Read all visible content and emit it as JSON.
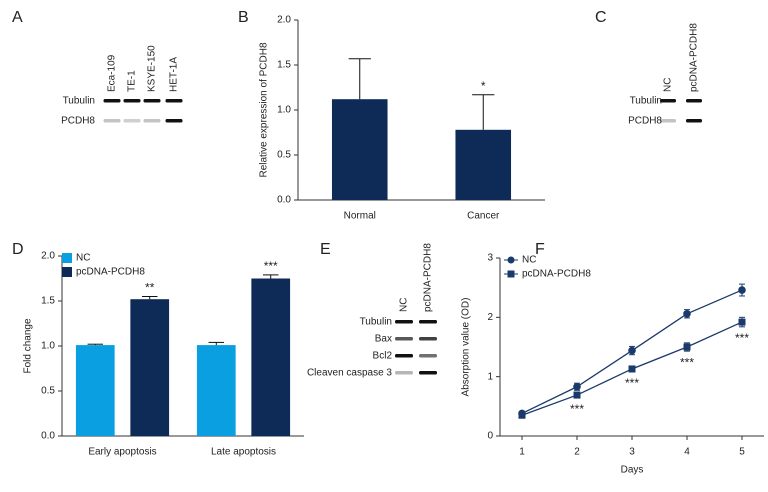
{
  "panel_labels": [
    "A",
    "B",
    "C",
    "D",
    "E",
    "F"
  ],
  "blots": [
    {
      "lanes": [
        "Eca-109",
        "TE-1",
        "KSYE-150",
        "HET-1A"
      ],
      "rows": [
        "Tubulin",
        "PCDH8"
      ]
    },
    {
      "lanes": [
        "NC",
        "pcDNA-PCDH8"
      ],
      "rows": [
        "Tubulin",
        "PCDH8"
      ]
    },
    {
      "lanes": [
        "NC",
        "pcDNA-PCDH8"
      ],
      "rows": [
        "Tubulin",
        "Bax",
        "Bcl2",
        "Cleaven caspase 3"
      ]
    }
  ],
  "chart_data": [
    {
      "type": "bar",
      "ylabel": "Relative expression of PCDH8",
      "categories": [
        "Normal",
        "Cancer"
      ],
      "values": [
        1.12,
        0.78
      ],
      "errors": [
        0.45,
        0.39
      ],
      "annotations": [
        null,
        "*"
      ],
      "color": "#0d2b56",
      "ylim": [
        0,
        2
      ],
      "yticks": [
        {
          "value": 0,
          "label": "0.0"
        },
        {
          "value": 0.5,
          "label": "0.5"
        },
        {
          "value": 1,
          "label": "1.0"
        },
        {
          "value": 1.5,
          "label": "1.5"
        },
        {
          "value": 2,
          "label": "2.0"
        }
      ]
    },
    {
      "type": "bar",
      "ylabel": "Fold change",
      "legend": "upper left",
      "categories": [
        "Early apoptosis",
        "Late apoptosis"
      ],
      "series": [
        {
          "name": "NC",
          "color": "#0a9fe0",
          "values": [
            1.01,
            1.01
          ],
          "errors": [
            0.01,
            0.03
          ],
          "annotations": [
            null,
            null
          ]
        },
        {
          "name": "pcDNA-PCDH8",
          "color": "#0d2b56",
          "values": [
            1.52,
            1.75
          ],
          "errors": [
            0.03,
            0.04
          ],
          "annotations": [
            "**",
            "***"
          ]
        }
      ],
      "ylim": [
        0,
        2
      ],
      "yticks": [
        {
          "value": 0,
          "label": "0.0"
        },
        {
          "value": 0.5,
          "label": "0.5"
        },
        {
          "value": 1,
          "label": "1.0"
        },
        {
          "value": 1.5,
          "label": "1.5"
        },
        {
          "value": 2,
          "label": "2.0"
        }
      ]
    },
    {
      "type": "line",
      "xlabel": "Days",
      "ylabel": "Absorption value (OD)",
      "legend": "upper left",
      "x": [
        1,
        2,
        3,
        4,
        5
      ],
      "series": [
        {
          "name": "NC",
          "color": "#1b3a6b",
          "marker": "circle",
          "values": [
            0.38,
            0.83,
            1.44,
            2.06,
            2.46
          ],
          "errors": [
            0.03,
            0.06,
            0.07,
            0.07,
            0.1
          ],
          "annotations": [
            null,
            null,
            null,
            null,
            null
          ]
        },
        {
          "name": "pcDNA-PCDH8",
          "color": "#1b3a6b",
          "marker": "square",
          "values": [
            0.35,
            0.69,
            1.13,
            1.5,
            1.92
          ],
          "errors": [
            0.03,
            0.05,
            0.05,
            0.07,
            0.08
          ],
          "annotations": [
            null,
            "***",
            "***",
            "***",
            "***"
          ]
        }
      ],
      "xlim": [
        0.6,
        5.4
      ],
      "xticks": [
        1,
        2,
        3,
        4,
        5
      ],
      "ylim": [
        0,
        3
      ],
      "yticks": [
        0,
        1,
        2,
        3
      ]
    }
  ]
}
